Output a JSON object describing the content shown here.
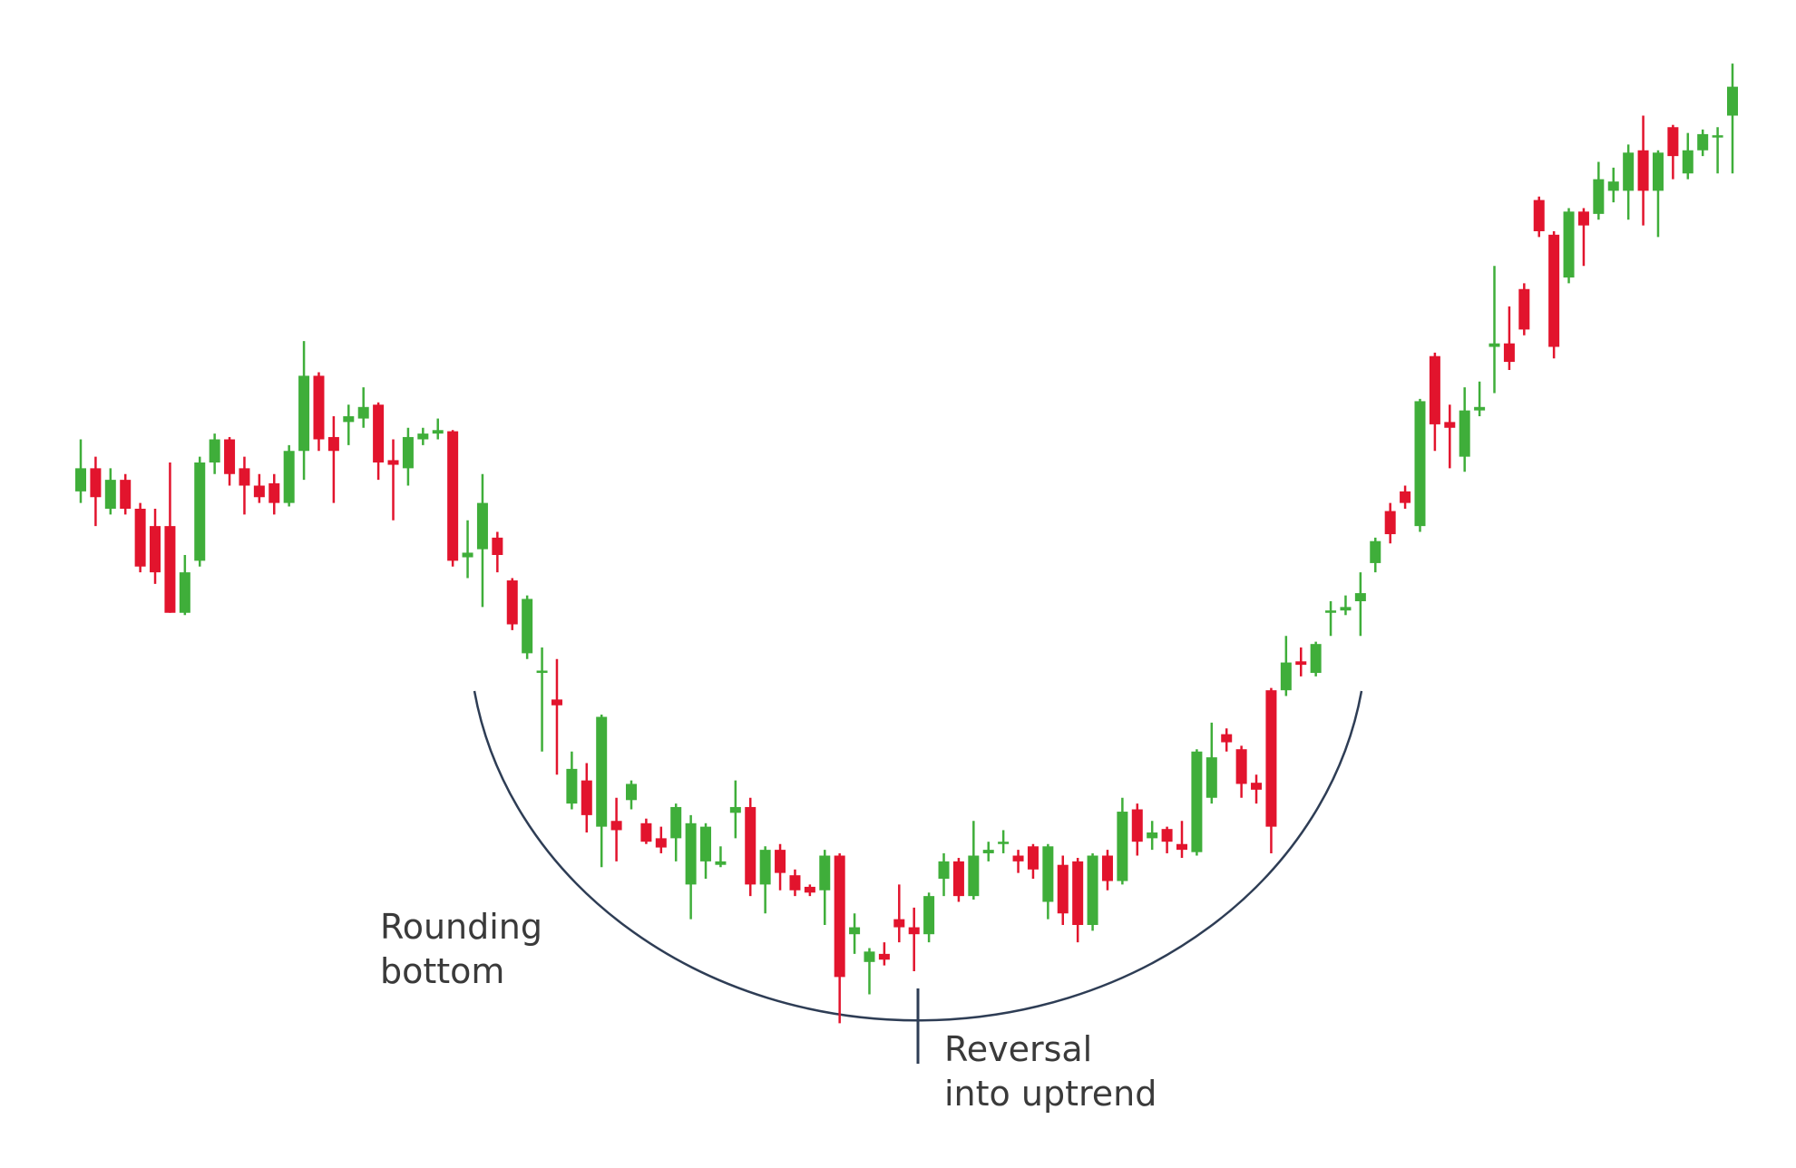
{
  "chart_data": {
    "type": "candlestick",
    "up_color": "#3fae3a",
    "down_color": "#e2142d",
    "ylim": [
      0,
      1000
    ],
    "ohlc": [
      [
        575,
        620,
        565,
        595
      ],
      [
        595,
        605,
        545,
        570
      ],
      [
        560,
        595,
        555,
        585
      ],
      [
        585,
        590,
        555,
        560
      ],
      [
        560,
        565,
        505,
        510
      ],
      [
        545,
        560,
        495,
        505
      ],
      [
        545,
        600,
        470,
        470
      ],
      [
        470,
        520,
        468,
        505
      ],
      [
        515,
        605,
        510,
        600
      ],
      [
        600,
        625,
        590,
        620
      ],
      [
        620,
        622,
        580,
        590
      ],
      [
        595,
        605,
        555,
        580
      ],
      [
        580,
        590,
        565,
        570
      ],
      [
        582,
        590,
        555,
        565
      ],
      [
        565,
        615,
        562,
        610
      ],
      [
        610,
        705,
        585,
        675
      ],
      [
        675,
        678,
        610,
        620
      ],
      [
        622,
        640,
        565,
        610
      ],
      [
        635,
        650,
        615,
        640
      ],
      [
        638,
        665,
        630,
        648
      ],
      [
        650,
        652,
        585,
        600
      ],
      [
        602,
        620,
        550,
        598
      ],
      [
        595,
        630,
        580,
        622
      ],
      [
        620,
        630,
        615,
        625
      ],
      [
        625,
        638,
        620,
        628
      ],
      [
        627,
        628,
        510,
        515
      ],
      [
        518,
        550,
        500,
        522
      ],
      [
        525,
        590,
        475,
        565
      ],
      [
        535,
        540,
        505,
        520
      ],
      [
        498,
        500,
        455,
        460
      ],
      [
        435,
        485,
        430,
        482
      ],
      [
        418,
        440,
        350,
        420
      ],
      [
        395,
        430,
        330,
        390
      ],
      [
        305,
        350,
        300,
        335
      ],
      [
        325,
        340,
        280,
        295
      ],
      [
        285,
        382,
        250,
        380
      ],
      [
        290,
        310,
        255,
        282
      ],
      [
        308,
        325,
        300,
        322
      ],
      [
        288,
        292,
        270,
        272
      ],
      [
        275,
        285,
        262,
        267
      ],
      [
        275,
        305,
        255,
        302
      ],
      [
        235,
        295,
        205,
        288
      ],
      [
        255,
        288,
        240,
        285
      ],
      [
        252,
        268,
        250,
        255
      ],
      [
        297,
        325,
        275,
        302
      ],
      [
        302,
        310,
        225,
        235
      ],
      [
        235,
        268,
        210,
        265
      ],
      [
        265,
        270,
        230,
        245
      ],
      [
        243,
        248,
        225,
        230
      ],
      [
        233,
        235,
        225,
        228
      ],
      [
        230,
        265,
        200,
        260
      ],
      [
        260,
        262,
        115,
        155
      ],
      [
        192,
        210,
        175,
        198
      ],
      [
        168,
        180,
        140,
        177
      ],
      [
        175,
        185,
        165,
        170
      ],
      [
        205,
        235,
        185,
        198
      ],
      [
        198,
        215,
        160,
        192
      ],
      [
        192,
        228,
        185,
        225
      ],
      [
        240,
        262,
        225,
        255
      ],
      [
        255,
        258,
        220,
        225
      ],
      [
        225,
        290,
        222,
        260
      ],
      [
        262,
        272,
        255,
        265
      ],
      [
        270,
        282,
        262,
        272
      ],
      [
        260,
        265,
        245,
        255
      ],
      [
        268,
        270,
        240,
        248
      ],
      [
        220,
        270,
        205,
        268
      ],
      [
        252,
        260,
        200,
        210
      ],
      [
        255,
        258,
        185,
        200
      ],
      [
        200,
        262,
        195,
        260
      ],
      [
        260,
        265,
        230,
        238
      ],
      [
        238,
        310,
        235,
        298
      ],
      [
        300,
        305,
        260,
        272
      ],
      [
        275,
        290,
        265,
        280
      ],
      [
        283,
        285,
        262,
        272
      ],
      [
        270,
        290,
        258,
        265
      ],
      [
        263,
        352,
        260,
        350
      ],
      [
        310,
        375,
        305,
        345
      ],
      [
        365,
        370,
        350,
        358
      ],
      [
        352,
        355,
        310,
        322
      ],
      [
        323,
        330,
        305,
        317
      ],
      [
        403,
        405,
        262,
        285
      ],
      [
        403,
        450,
        398,
        427
      ],
      [
        428,
        440,
        415,
        425
      ],
      [
        418,
        445,
        415,
        443
      ],
      [
        470,
        480,
        450,
        472
      ],
      [
        472,
        485,
        468,
        475
      ],
      [
        480,
        505,
        450,
        487
      ],
      [
        513,
        535,
        505,
        532
      ],
      [
        558,
        565,
        530,
        538
      ],
      [
        575,
        580,
        560,
        565
      ],
      [
        545,
        655,
        540,
        653
      ],
      [
        692,
        695,
        610,
        633
      ],
      [
        635,
        650,
        595,
        630
      ],
      [
        605,
        665,
        592,
        645
      ],
      [
        645,
        670,
        640,
        648
      ],
      [
        700,
        770,
        660,
        703
      ],
      [
        703,
        735,
        680,
        687
      ],
      [
        750,
        755,
        710,
        715
      ],
      [
        827,
        830,
        795,
        800
      ],
      [
        797,
        800,
        690,
        700
      ],
      [
        760,
        820,
        755,
        817
      ],
      [
        817,
        820,
        770,
        805
      ],
      [
        815,
        860,
        810,
        845
      ],
      [
        835,
        855,
        825,
        843
      ],
      [
        835,
        875,
        810,
        868
      ],
      [
        870,
        900,
        805,
        835
      ],
      [
        835,
        870,
        795,
        868
      ],
      [
        890,
        892,
        845,
        865
      ],
      [
        850,
        885,
        845,
        870
      ],
      [
        870,
        888,
        865,
        884
      ],
      [
        882,
        890,
        850,
        883
      ],
      [
        900,
        945,
        850,
        925
      ]
    ],
    "annotations": [
      {
        "lines": [
          "Rounding",
          "bottom"
        ]
      },
      {
        "lines": [
          "Reversal",
          "into uptrend"
        ]
      }
    ]
  }
}
